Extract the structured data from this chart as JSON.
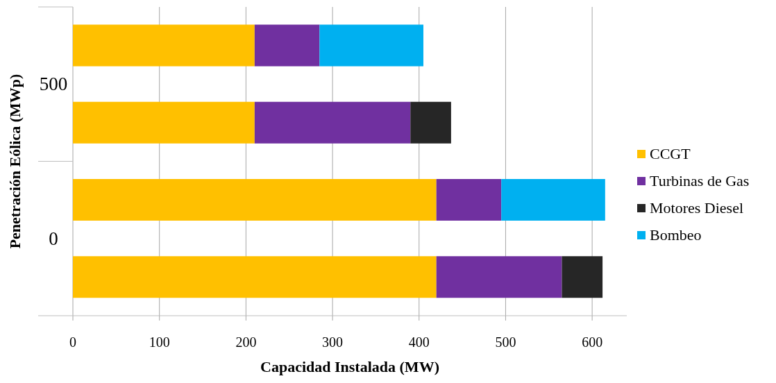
{
  "chart_data": {
    "type": "bar",
    "orientation": "horizontal",
    "stacked": true,
    "categories": [
      "500",
      null,
      "0",
      null
    ],
    "series": [
      {
        "name": "CCGT",
        "color": "#ffc000",
        "values": [
          210,
          210,
          420,
          420
        ]
      },
      {
        "name": "Turbinas de Gas",
        "color": "#7030a0",
        "values": [
          75,
          180,
          75,
          145
        ]
      },
      {
        "name": "Motores Diesel",
        "color": "#262626",
        "values": [
          null,
          47,
          null,
          47
        ]
      },
      {
        "name": "Bombeo",
        "color": "#00b0f0",
        "values": [
          120,
          null,
          120,
          null
        ]
      }
    ],
    "xlabel": "Capacidad Instalada (MW)",
    "ylabel": "Penetración Eólica (MWp)",
    "xlim": [
      0,
      640
    ],
    "xticks": [
      0,
      100,
      200,
      300,
      400,
      500,
      600
    ],
    "grid": "x",
    "legend": "right"
  }
}
